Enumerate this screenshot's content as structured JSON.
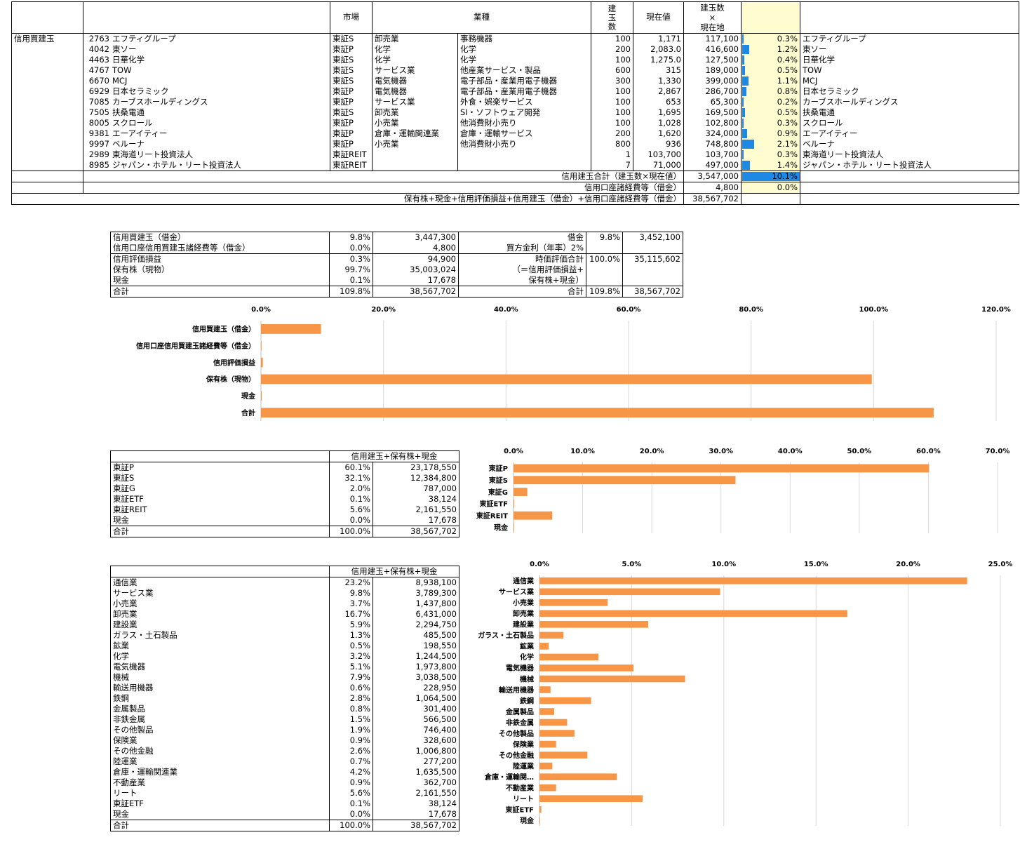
{
  "main_table": {
    "headers": {
      "market": "市場",
      "industry": "業種",
      "qty": "建\n玉\n数",
      "price": "現在値",
      "value": "建玉数\n×\n現在地"
    },
    "section_label": "信用買建玉",
    "rows": [
      {
        "code": "2763",
        "name": "エフティグループ",
        "market": "東証S",
        "ind1": "卸売業",
        "ind2": "事務機器",
        "qty": "100",
        "price": "1,171",
        "value": "117,100",
        "pct": 0.3,
        "pct_label": "0.3%",
        "name2": "エフティグループ"
      },
      {
        "code": "4042",
        "name": "東ソー",
        "market": "東証P",
        "ind1": "化学",
        "ind2": "化学",
        "qty": "200",
        "price": "2,083.0",
        "value": "416,600",
        "pct": 1.2,
        "pct_label": "1.2%",
        "name2": "東ソー"
      },
      {
        "code": "4463",
        "name": "日華化学",
        "market": "東証S",
        "ind1": "化学",
        "ind2": "化学",
        "qty": "100",
        "price": "1,275.0",
        "value": "127,500",
        "pct": 0.4,
        "pct_label": "0.4%",
        "name2": "日華化学"
      },
      {
        "code": "4767",
        "name": "TOW",
        "market": "東証S",
        "ind1": "サービス業",
        "ind2": "他産業サービス・製品",
        "qty": "600",
        "price": "315",
        "value": "189,000",
        "pct": 0.5,
        "pct_label": "0.5%",
        "name2": "TOW"
      },
      {
        "code": "6670",
        "name": "MCJ",
        "market": "東証S",
        "ind1": "電気機器",
        "ind2": "電子部品・産業用電子機器",
        "qty": "300",
        "price": "1,330",
        "value": "399,000",
        "pct": 1.1,
        "pct_label": "1.1%",
        "name2": "MCJ"
      },
      {
        "code": "6929",
        "name": "日本セラミック",
        "market": "東証P",
        "ind1": "電気機器",
        "ind2": "電子部品・産業用電子機器",
        "qty": "100",
        "price": "2,867",
        "value": "286,700",
        "pct": 0.8,
        "pct_label": "0.8%",
        "name2": "日本セラミック"
      },
      {
        "code": "7085",
        "name": "カーブスホールディングス",
        "market": "東証P",
        "ind1": "サービス業",
        "ind2": "外食・娯楽サービス",
        "qty": "100",
        "price": "653",
        "value": "65,300",
        "pct": 0.2,
        "pct_label": "0.2%",
        "name2": "カーブスホールディングス"
      },
      {
        "code": "7505",
        "name": "扶桑電通",
        "market": "東証S",
        "ind1": "卸売業",
        "ind2": "SI・ソフトウェア開発",
        "qty": "100",
        "price": "1,695",
        "value": "169,500",
        "pct": 0.5,
        "pct_label": "0.5%",
        "name2": "扶桑電通"
      },
      {
        "code": "8005",
        "name": "スクロール",
        "market": "東証P",
        "ind1": "小売業",
        "ind2": "他消費財小売り",
        "qty": "100",
        "price": "1,028",
        "value": "102,800",
        "pct": 0.3,
        "pct_label": "0.3%",
        "name2": "スクロール"
      },
      {
        "code": "9381",
        "name": "エーアイティー",
        "market": "東証P",
        "ind1": "倉庫・運輸関連業",
        "ind2": "倉庫・運輸サービス",
        "qty": "200",
        "price": "1,620",
        "value": "324,000",
        "pct": 0.9,
        "pct_label": "0.9%",
        "name2": "エーアイティー"
      },
      {
        "code": "9997",
        "name": "ベルーナ",
        "market": "東証P",
        "ind1": "小売業",
        "ind2": "他消費財小売り",
        "qty": "800",
        "price": "936",
        "value": "748,800",
        "pct": 2.1,
        "pct_label": "2.1%",
        "name2": "ベルーナ"
      },
      {
        "code": "2989",
        "name": "東海道リート投資法人",
        "market": "東証REIT",
        "ind1": "",
        "ind2": "",
        "qty": "1",
        "price": "103,700",
        "value": "103,700",
        "pct": 0.3,
        "pct_label": "0.3%",
        "name2": "東海道リート投資法人"
      },
      {
        "code": "8985",
        "name": "ジャパン・ホテル・リート投資法人",
        "market": "東証REIT",
        "ind1": "",
        "ind2": "",
        "qty": "7",
        "price": "71,000",
        "value": "497,000",
        "pct": 1.4,
        "pct_label": "1.4%",
        "name2": "ジャパン・ホテル・リート投資法人"
      }
    ],
    "total_label": "信用建玉合計（建玉数×現在値）",
    "total_value": "3,547,000",
    "total_pct": 10.1,
    "total_pct_label": "10.1%",
    "fees_label": "信用口座諸経費等（借金）",
    "fees_value": "4,800",
    "fees_pct_label": "0.0%",
    "grand_label": "保有株+現金+信用評価損益+信用建玉（借金）+信用口座諸経費等（借金）",
    "grand_value": "38,567,702"
  },
  "summary_table": {
    "rows": [
      {
        "label": "信用買建玉（借金）",
        "pct": "9.8%",
        "value": "3,447,300"
      },
      {
        "label": "信用口座信用買建玉諸経費等（借金）",
        "pct": "0.0%",
        "value": "4,800"
      },
      {
        "label": "信用評価損益",
        "pct": "0.3%",
        "value": "94,900"
      },
      {
        "label": "保有株（現物）",
        "pct": "99.7%",
        "value": "35,003,024"
      },
      {
        "label": "現金",
        "pct": "0.1%",
        "value": "17,678"
      },
      {
        "label": "合計",
        "pct": "109.8%",
        "value": "38,567,702"
      }
    ],
    "debt_label": "借金",
    "debt_pct": "9.8%",
    "debt_value": "3,452,100",
    "interest_label": "買方金利（年率）2%",
    "mv_label_1": "時価評価合計",
    "mv_label_2": "（＝信用評価損益+",
    "mv_label_3": "保有株+現金）",
    "mv_pct": "100.0%",
    "mv_value": "35,115,602",
    "total_label": "合計",
    "total_pct": "109.8%",
    "total_value": "38,567,702"
  },
  "market_table": {
    "header": "信用建玉+保有株+現金",
    "rows": [
      {
        "label": "東証P",
        "pct": "60.1%",
        "value": "23,178,550"
      },
      {
        "label": "東証S",
        "pct": "32.1%",
        "value": "12,384,800"
      },
      {
        "label": "東証G",
        "pct": "2.0%",
        "value": "787,000"
      },
      {
        "label": "東証ETF",
        "pct": "0.1%",
        "value": "38,124"
      },
      {
        "label": "東証REIT",
        "pct": "5.6%",
        "value": "2,161,550"
      },
      {
        "label": "現金",
        "pct": "0.0%",
        "value": "17,678"
      },
      {
        "label": "合計",
        "pct": "100.0%",
        "value": "38,567,702"
      }
    ]
  },
  "industry_table": {
    "header": "信用建玉+保有株+現金",
    "rows": [
      {
        "label": "通信業",
        "pct": "23.2%",
        "value": "8,938,100"
      },
      {
        "label": "サービス業",
        "pct": "9.8%",
        "value": "3,789,300"
      },
      {
        "label": "小売業",
        "pct": "3.7%",
        "value": "1,437,800"
      },
      {
        "label": "卸売業",
        "pct": "16.7%",
        "value": "6,431,000"
      },
      {
        "label": "建設業",
        "pct": "5.9%",
        "value": "2,294,750"
      },
      {
        "label": "ガラス・土石製品",
        "pct": "1.3%",
        "value": "485,500"
      },
      {
        "label": "鉱業",
        "pct": "0.5%",
        "value": "198,550"
      },
      {
        "label": "化学",
        "pct": "3.2%",
        "value": "1,244,500"
      },
      {
        "label": "電気機器",
        "pct": "5.1%",
        "value": "1,973,800"
      },
      {
        "label": "機械",
        "pct": "7.9%",
        "value": "3,038,500"
      },
      {
        "label": "輸送用機器",
        "pct": "0.6%",
        "value": "228,950"
      },
      {
        "label": "鉄鋼",
        "pct": "2.8%",
        "value": "1,064,500"
      },
      {
        "label": "金属製品",
        "pct": "0.8%",
        "value": "301,400"
      },
      {
        "label": "非鉄金属",
        "pct": "1.5%",
        "value": "566,500"
      },
      {
        "label": "その他製品",
        "pct": "1.9%",
        "value": "746,400"
      },
      {
        "label": "保険業",
        "pct": "0.9%",
        "value": "328,600"
      },
      {
        "label": "その他金融",
        "pct": "2.6%",
        "value": "1,006,800"
      },
      {
        "label": "陸運業",
        "pct": "0.7%",
        "value": "277,200"
      },
      {
        "label": "倉庫・運輸関連業",
        "pct": "4.2%",
        "value": "1,635,500"
      },
      {
        "label": "不動産業",
        "pct": "0.9%",
        "value": "362,700"
      },
      {
        "label": "リート",
        "pct": "5.6%",
        "value": "2,161,550"
      },
      {
        "label": "東証ETF",
        "pct": "0.1%",
        "value": "38,124"
      },
      {
        "label": "現金",
        "pct": "0.0%",
        "value": "17,678"
      },
      {
        "label": "合計",
        "pct": "100.0%",
        "value": "38,567,702"
      }
    ]
  },
  "chart_data": [
    {
      "type": "bar",
      "orientation": "horizontal",
      "categories": [
        "信用買建玉（借金）",
        "信用口座信用買建玉諸経費等（借金）",
        "信用評価損益",
        "保有株（現物）",
        "現金",
        "合計"
      ],
      "values": [
        9.8,
        0.0,
        0.3,
        99.7,
        0.1,
        109.8
      ],
      "xlim": [
        0,
        120
      ],
      "ticks": [
        "0.0%",
        "20.0%",
        "40.0%",
        "60.0%",
        "80.0%",
        "100.0%",
        "120.0%"
      ],
      "tick_values": [
        0,
        20,
        40,
        60,
        80,
        100,
        120
      ],
      "grid": true,
      "color": "#f79646"
    },
    {
      "type": "bar",
      "orientation": "horizontal",
      "categories": [
        "東証P",
        "東証S",
        "東証G",
        "東証ETF",
        "東証REIT",
        "現金"
      ],
      "values": [
        60.1,
        32.1,
        2.0,
        0.1,
        5.6,
        0.0
      ],
      "xlim": [
        0,
        70
      ],
      "ticks": [
        "0.0%",
        "10.0%",
        "20.0%",
        "30.0%",
        "40.0%",
        "50.0%",
        "60.0%",
        "70.0%"
      ],
      "tick_values": [
        0,
        10,
        20,
        30,
        40,
        50,
        60,
        70
      ],
      "grid": true,
      "color": "#f79646"
    },
    {
      "type": "bar",
      "orientation": "horizontal",
      "categories": [
        "通信業",
        "サービス業",
        "小売業",
        "卸売業",
        "建設業",
        "ガラス・土石製品",
        "鉱業",
        "化学",
        "電気機器",
        "機械",
        "輸送用機器",
        "鉄鋼",
        "金属製品",
        "非鉄金属",
        "その他製品",
        "保険業",
        "その他金融",
        "陸運業",
        "倉庫・運輸関…",
        "不動産業",
        "リート",
        "東証ETF",
        "現金"
      ],
      "values": [
        23.2,
        9.8,
        3.7,
        16.7,
        5.9,
        1.3,
        0.5,
        3.2,
        5.1,
        7.9,
        0.6,
        2.8,
        0.8,
        1.5,
        1.9,
        0.9,
        2.6,
        0.7,
        4.2,
        0.9,
        5.6,
        0.1,
        0.0
      ],
      "xlim": [
        0,
        25
      ],
      "ticks": [
        "0.0%",
        "5.0%",
        "10.0%",
        "15.0%",
        "20.0%",
        "25.0%"
      ],
      "tick_values": [
        0,
        5,
        10,
        15,
        20,
        25
      ],
      "grid": true,
      "color": "#f79646"
    }
  ]
}
